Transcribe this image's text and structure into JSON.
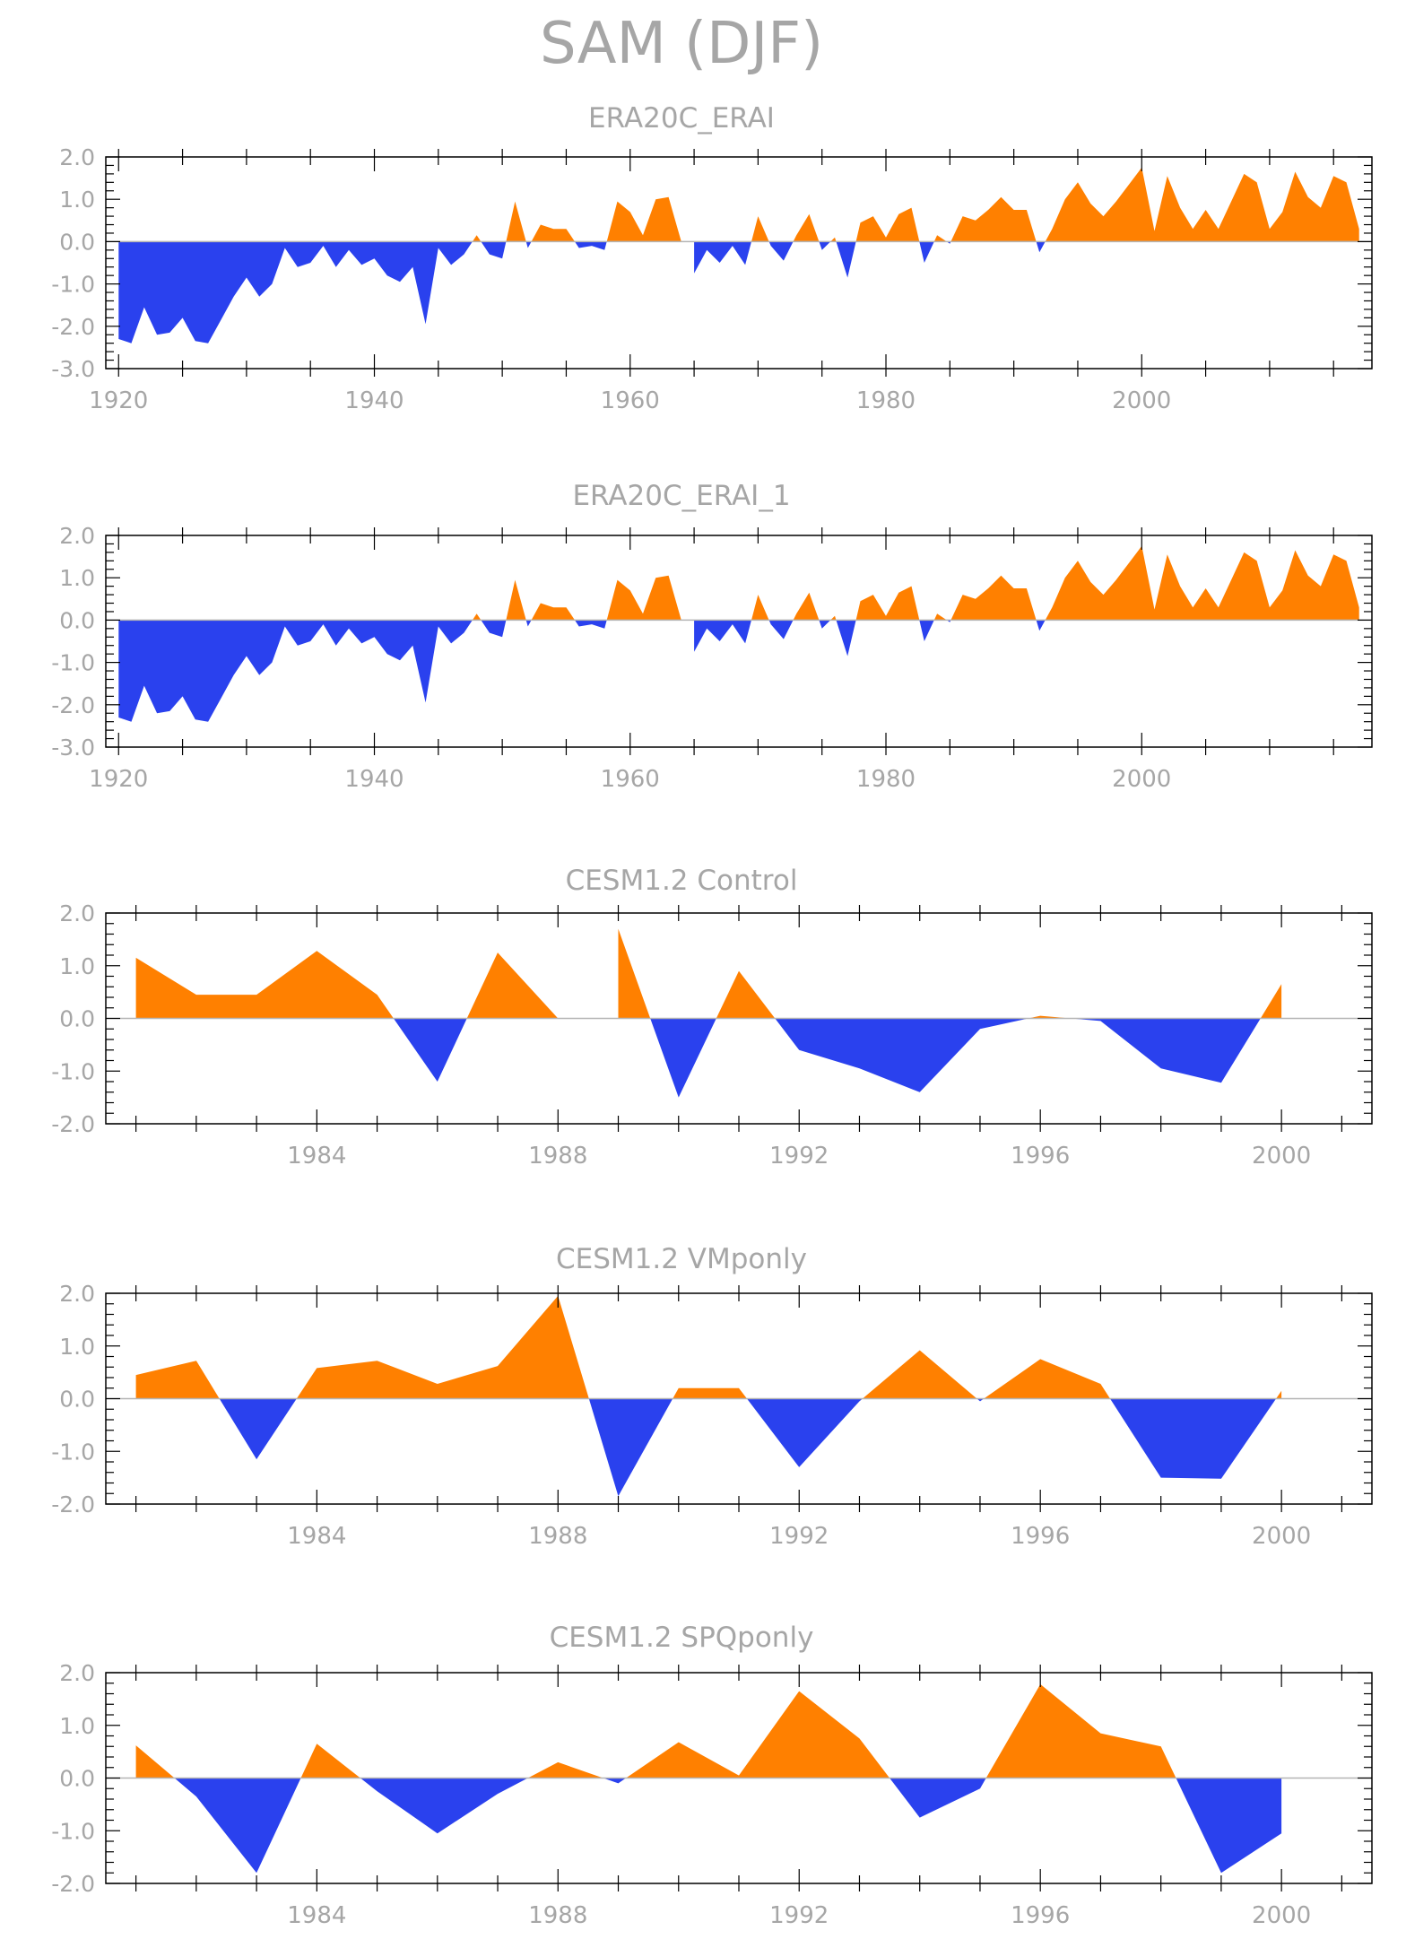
{
  "title": "SAM (DJF)",
  "colors": {
    "positive": "#ff8000",
    "negative": "#2a41ee",
    "axis": "#000000",
    "text": "#a6a6a6",
    "zero_line": "#b4b4b4"
  },
  "chart_data": [
    {
      "type": "area",
      "title": "ERA20C_ERAI",
      "xlim": [
        1919,
        2018
      ],
      "ylim": [
        -3.0,
        2.0
      ],
      "yticks": [
        "2.0",
        "1.0",
        "0.0",
        "-1.0",
        "-2.0",
        "-3.0"
      ],
      "xticks": [
        "1920",
        "1940",
        "1960",
        "1980",
        "2000"
      ],
      "x": [
        1920,
        1921,
        1922,
        1923,
        1924,
        1925,
        1926,
        1927,
        1928,
        1929,
        1930,
        1931,
        1932,
        1933,
        1934,
        1935,
        1936,
        1937,
        1938,
        1939,
        1940,
        1941,
        1942,
        1943,
        1944,
        1945,
        1946,
        1947,
        1948,
        1949,
        1950,
        1951,
        1952,
        1953,
        1954,
        1955,
        1956,
        1957,
        1958,
        1959,
        1960,
        1961,
        1962,
        1963,
        1964,
        1965,
        1966,
        1967,
        1968,
        1969,
        1970,
        1971,
        1972,
        1973,
        1974,
        1975,
        1976,
        1977,
        1978,
        1979,
        1980,
        1981,
        1982,
        1983,
        1984,
        1985,
        1986,
        1987,
        1988,
        1989,
        1990,
        1991,
        1992,
        1993,
        1994,
        1995,
        1996,
        1997,
        1998,
        1999,
        2000,
        2001,
        2002,
        2003,
        2004,
        2005,
        2006,
        2007,
        2008,
        2009,
        2010,
        2011,
        2012,
        2013,
        2014,
        2015,
        2016,
        2017
      ],
      "values": [
        -2.3,
        -2.4,
        -1.55,
        -2.2,
        -2.15,
        -1.8,
        -2.35,
        -2.4,
        -1.85,
        -1.3,
        -0.85,
        -1.3,
        -1.0,
        -0.15,
        -0.6,
        -0.5,
        -0.1,
        -0.6,
        -0.2,
        -0.55,
        -0.4,
        -0.8,
        -0.95,
        -0.6,
        -1.95,
        -0.15,
        -0.55,
        -0.3,
        0.15,
        -0.3,
        -0.4,
        0.95,
        -0.15,
        0.4,
        0.3,
        0.3,
        -0.15,
        -0.1,
        -0.2,
        0.95,
        0.7,
        0.15,
        1.0,
        1.05,
        0.0,
        -0.75,
        -0.2,
        -0.5,
        -0.1,
        -0.55,
        0.6,
        -0.1,
        -0.45,
        0.15,
        0.65,
        -0.2,
        0.1,
        -0.85,
        0.45,
        0.6,
        0.1,
        0.65,
        0.8,
        -0.5,
        0.15,
        -0.05,
        0.6,
        0.5,
        0.75,
        1.05,
        0.75,
        0.75,
        -0.25,
        0.3,
        1.0,
        1.4,
        0.9,
        0.6,
        0.95,
        1.35,
        1.75,
        0.25,
        1.55,
        0.8,
        0.3,
        0.75,
        0.3,
        0.95,
        1.6,
        1.4,
        0.3,
        0.7,
        1.65,
        1.05,
        0.8,
        1.55,
        1.4,
        0.3
      ]
    },
    {
      "type": "area",
      "title": "ERA20C_ERAI_1",
      "xlim": [
        1919,
        2018
      ],
      "ylim": [
        -3.0,
        2.0
      ],
      "yticks": [
        "2.0",
        "1.0",
        "0.0",
        "-1.0",
        "-2.0",
        "-3.0"
      ],
      "xticks": [
        "1920",
        "1940",
        "1960",
        "1980",
        "2000"
      ],
      "x": [
        1920,
        1921,
        1922,
        1923,
        1924,
        1925,
        1926,
        1927,
        1928,
        1929,
        1930,
        1931,
        1932,
        1933,
        1934,
        1935,
        1936,
        1937,
        1938,
        1939,
        1940,
        1941,
        1942,
        1943,
        1944,
        1945,
        1946,
        1947,
        1948,
        1949,
        1950,
        1951,
        1952,
        1953,
        1954,
        1955,
        1956,
        1957,
        1958,
        1959,
        1960,
        1961,
        1962,
        1963,
        1964,
        1965,
        1966,
        1967,
        1968,
        1969,
        1970,
        1971,
        1972,
        1973,
        1974,
        1975,
        1976,
        1977,
        1978,
        1979,
        1980,
        1981,
        1982,
        1983,
        1984,
        1985,
        1986,
        1987,
        1988,
        1989,
        1990,
        1991,
        1992,
        1993,
        1994,
        1995,
        1996,
        1997,
        1998,
        1999,
        2000,
        2001,
        2002,
        2003,
        2004,
        2005,
        2006,
        2007,
        2008,
        2009,
        2010,
        2011,
        2012,
        2013,
        2014,
        2015,
        2016,
        2017
      ],
      "values": [
        -2.3,
        -2.4,
        -1.55,
        -2.2,
        -2.15,
        -1.8,
        -2.35,
        -2.4,
        -1.85,
        -1.3,
        -0.85,
        -1.3,
        -1.0,
        -0.15,
        -0.6,
        -0.5,
        -0.1,
        -0.6,
        -0.2,
        -0.55,
        -0.4,
        -0.8,
        -0.95,
        -0.6,
        -1.95,
        -0.15,
        -0.55,
        -0.3,
        0.15,
        -0.3,
        -0.4,
        0.95,
        -0.15,
        0.4,
        0.3,
        0.3,
        -0.15,
        -0.1,
        -0.2,
        0.95,
        0.7,
        0.15,
        1.0,
        1.05,
        0.0,
        -0.75,
        -0.2,
        -0.5,
        -0.1,
        -0.55,
        0.6,
        -0.1,
        -0.45,
        0.15,
        0.65,
        -0.2,
        0.1,
        -0.85,
        0.45,
        0.6,
        0.1,
        0.65,
        0.8,
        -0.5,
        0.15,
        -0.05,
        0.6,
        0.5,
        0.75,
        1.05,
        0.75,
        0.75,
        -0.25,
        0.3,
        1.0,
        1.4,
        0.9,
        0.6,
        0.95,
        1.35,
        1.75,
        0.25,
        1.55,
        0.8,
        0.3,
        0.75,
        0.3,
        0.95,
        1.6,
        1.4,
        0.3,
        0.7,
        1.65,
        1.05,
        0.8,
        1.55,
        1.4,
        0.3
      ]
    },
    {
      "type": "area",
      "title": "CESM1.2 Control",
      "xlim": [
        1980.5,
        2001.5
      ],
      "ylim": [
        -2.0,
        2.0
      ],
      "yticks": [
        "2.0",
        "1.0",
        "0.0",
        "-1.0",
        "-2.0"
      ],
      "xticks": [
        "1984",
        "1988",
        "1992",
        "1996",
        "2000"
      ],
      "x": [
        1981,
        1982,
        1983,
        1984,
        1985,
        1986,
        1987,
        1988,
        1989,
        1990,
        1991,
        1992,
        1993,
        1994,
        1995,
        1996,
        1997,
        1998,
        1999,
        2000
      ],
      "values": [
        1.15,
        0.45,
        0.45,
        1.28,
        0.45,
        -1.2,
        1.25,
        0.0,
        1.7,
        -1.5,
        0.9,
        -0.6,
        -0.95,
        -1.4,
        -0.2,
        0.05,
        -0.05,
        -0.95,
        -1.22,
        0.65
      ]
    },
    {
      "type": "area",
      "title": "CESM1.2 VMponly",
      "xlim": [
        1980.5,
        2001.5
      ],
      "ylim": [
        -2.0,
        2.0
      ],
      "yticks": [
        "2.0",
        "1.0",
        "0.0",
        "-1.0",
        "-2.0"
      ],
      "xticks": [
        "1984",
        "1988",
        "1992",
        "1996",
        "2000"
      ],
      "x": [
        1981,
        1982,
        1983,
        1984,
        1985,
        1986,
        1987,
        1988,
        1989,
        1990,
        1991,
        1992,
        1993,
        1994,
        1995,
        1996,
        1997,
        1998,
        1999,
        2000
      ],
      "values": [
        0.45,
        0.72,
        -1.15,
        0.58,
        0.72,
        0.28,
        0.62,
        1.95,
        -1.85,
        0.2,
        0.2,
        -1.3,
        -0.05,
        0.92,
        -0.05,
        0.75,
        0.28,
        -1.5,
        -1.52,
        0.15
      ]
    },
    {
      "type": "area",
      "title": "CESM1.2 SPQponly",
      "xlim": [
        1980.5,
        2001.5
      ],
      "ylim": [
        -2.0,
        2.0
      ],
      "yticks": [
        "2.0",
        "1.0",
        "0.0",
        "-1.0",
        "-2.0"
      ],
      "xticks": [
        "1984",
        "1988",
        "1992",
        "1996",
        "2000"
      ],
      "x": [
        1981,
        1982,
        1983,
        1984,
        1985,
        1986,
        1987,
        1988,
        1989,
        1990,
        1991,
        1992,
        1993,
        1994,
        1995,
        1996,
        1997,
        1998,
        1999,
        2000
      ],
      "values": [
        0.62,
        -0.35,
        -1.8,
        0.65,
        -0.25,
        -1.05,
        -0.3,
        0.3,
        -0.1,
        0.68,
        0.05,
        1.65,
        0.75,
        -0.75,
        -0.2,
        1.78,
        0.85,
        0.6,
        -1.8,
        -1.05
      ]
    }
  ]
}
